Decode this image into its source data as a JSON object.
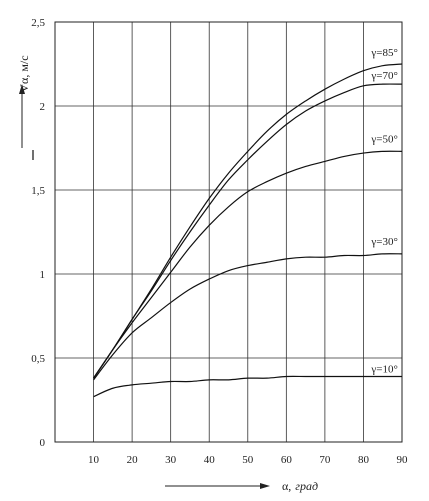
{
  "chart_data": {
    "type": "line",
    "title": "",
    "xlabel_prefix": "α,",
    "xlabel_unit": "град",
    "ylabel": "Vα, м/с",
    "xlim": [
      0,
      90
    ],
    "ylim": [
      0,
      2.5
    ],
    "grid": true,
    "x_ticks": [
      10,
      20,
      30,
      40,
      50,
      60,
      70,
      80,
      90
    ],
    "y_ticks": [
      0,
      0.5,
      1,
      1.5,
      2,
      2.5
    ],
    "y_tick_labels": [
      "0",
      "0,5",
      "1",
      "1,5",
      "2",
      "2,5"
    ],
    "series": [
      {
        "name": "γ=85°",
        "x": [
          10,
          15,
          20,
          25,
          30,
          35,
          40,
          45,
          50,
          55,
          60,
          65,
          70,
          75,
          80,
          85,
          90
        ],
        "y": [
          0.38,
          0.55,
          0.73,
          0.91,
          1.1,
          1.28,
          1.45,
          1.6,
          1.73,
          1.85,
          1.95,
          2.03,
          2.1,
          2.16,
          2.21,
          2.24,
          2.25
        ]
      },
      {
        "name": "γ=70°",
        "x": [
          10,
          15,
          20,
          25,
          30,
          35,
          40,
          45,
          50,
          55,
          60,
          65,
          70,
          75,
          80,
          85,
          90
        ],
        "y": [
          0.38,
          0.55,
          0.73,
          0.9,
          1.08,
          1.25,
          1.41,
          1.56,
          1.68,
          1.79,
          1.89,
          1.97,
          2.03,
          2.08,
          2.12,
          2.13,
          2.13
        ]
      },
      {
        "name": "γ=50°",
        "x": [
          10,
          15,
          20,
          25,
          30,
          35,
          40,
          45,
          50,
          55,
          60,
          65,
          70,
          75,
          80,
          85,
          90
        ],
        "y": [
          0.38,
          0.55,
          0.71,
          0.86,
          1.01,
          1.16,
          1.29,
          1.4,
          1.49,
          1.55,
          1.6,
          1.64,
          1.67,
          1.7,
          1.72,
          1.73,
          1.73
        ]
      },
      {
        "name": "γ=30°",
        "x": [
          10,
          15,
          20,
          25,
          30,
          35,
          40,
          45,
          50,
          55,
          60,
          65,
          70,
          75,
          80,
          85,
          90
        ],
        "y": [
          0.37,
          0.52,
          0.65,
          0.74,
          0.83,
          0.91,
          0.97,
          1.02,
          1.05,
          1.07,
          1.09,
          1.1,
          1.1,
          1.11,
          1.11,
          1.12,
          1.12
        ]
      },
      {
        "name": "γ=10°",
        "x": [
          10,
          15,
          20,
          25,
          30,
          35,
          40,
          45,
          50,
          55,
          60,
          65,
          70,
          75,
          80,
          85,
          90
        ],
        "y": [
          0.27,
          0.32,
          0.34,
          0.35,
          0.36,
          0.36,
          0.37,
          0.37,
          0.38,
          0.38,
          0.39,
          0.39,
          0.39,
          0.39,
          0.39,
          0.39,
          0.39
        ]
      }
    ]
  }
}
